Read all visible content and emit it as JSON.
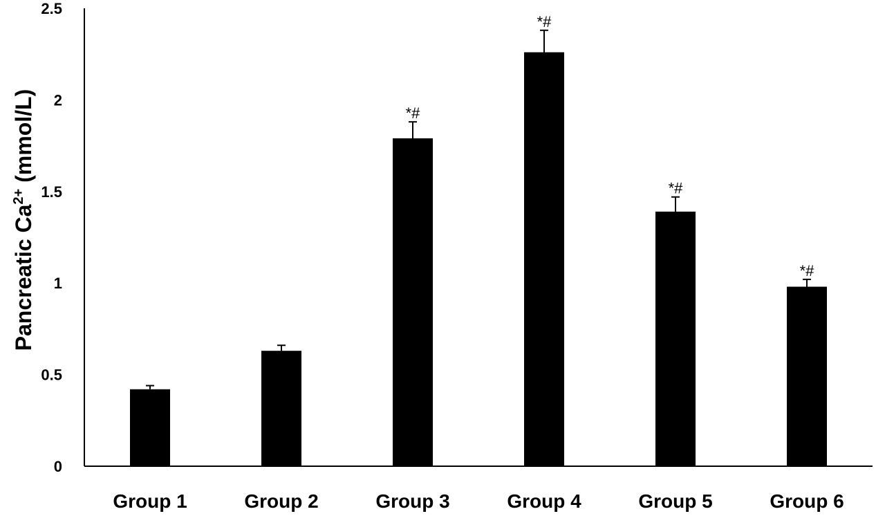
{
  "chart_data": {
    "type": "bar",
    "categories": [
      "Group 1",
      "Group 2",
      "Group 3",
      "Group 4",
      "Group 5",
      "Group 6"
    ],
    "values": [
      0.42,
      0.63,
      1.79,
      2.26,
      1.39,
      0.98
    ],
    "errors": [
      0.02,
      0.03,
      0.09,
      0.12,
      0.08,
      0.04
    ],
    "annotations": [
      "",
      "",
      "*#",
      "*#",
      "*#",
      "*#"
    ],
    "ylabel_main": "Pancreatic Ca",
    "ylabel_sup": "2+",
    "ylabel_unit": " (mmol/L)",
    "xlabel": "",
    "ylim": [
      0,
      2.5
    ],
    "yticks": [
      0,
      0.5,
      1,
      1.5,
      2,
      2.5
    ],
    "ytick_labels": [
      "0",
      "0.5",
      "1",
      "1.5",
      "2",
      "2.5"
    ],
    "grid": false,
    "bar_color": "#000000"
  }
}
